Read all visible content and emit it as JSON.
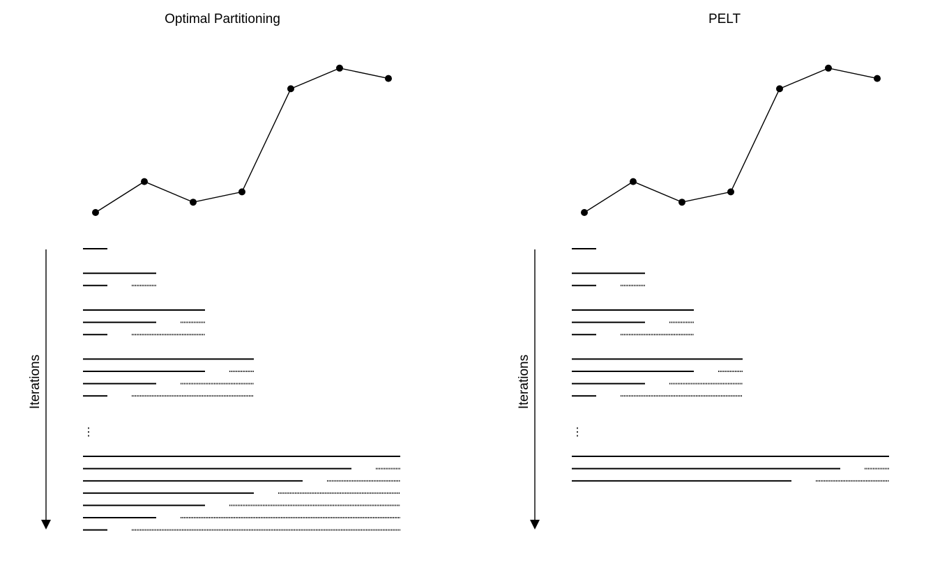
{
  "panels": [
    {
      "title": "Optimal Partitioning",
      "y_axis_label": "Iterations",
      "ellipsis": "⋮",
      "points": [
        3,
        6,
        4,
        5,
        15,
        17,
        16
      ],
      "groups_before_ellipsis": [
        [
          {
            "end": 1,
            "prune": null
          }
        ],
        [
          {
            "end": 3,
            "prune": null
          },
          {
            "end": 1,
            "prune": [
              2,
              3
            ]
          }
        ],
        [
          {
            "end": 5,
            "prune": null
          },
          {
            "end": 3,
            "prune": [
              4,
              5
            ]
          },
          {
            "end": 1,
            "prune": [
              2,
              5
            ]
          }
        ],
        [
          {
            "end": 7,
            "prune": null
          },
          {
            "end": 5,
            "prune": [
              6,
              7
            ]
          },
          {
            "end": 3,
            "prune": [
              4,
              7
            ]
          },
          {
            "end": 1,
            "prune": [
              2,
              7
            ]
          }
        ]
      ],
      "final_group": [
        {
          "end": 13,
          "prune": null
        },
        {
          "end": 11,
          "prune": [
            12,
            13
          ]
        },
        {
          "end": 9,
          "prune": [
            10,
            13
          ]
        },
        {
          "end": 7,
          "prune": [
            8,
            13
          ]
        },
        {
          "end": 5,
          "prune": [
            6,
            13
          ]
        },
        {
          "end": 3,
          "prune": [
            4,
            13
          ]
        },
        {
          "end": 1,
          "prune": [
            2,
            13
          ]
        }
      ]
    },
    {
      "title": "PELT",
      "y_axis_label": "Iterations",
      "ellipsis": "⋮",
      "points": [
        3,
        6,
        4,
        5,
        15,
        17,
        16
      ],
      "groups_before_ellipsis": [
        [
          {
            "end": 1,
            "prune": null
          }
        ],
        [
          {
            "end": 3,
            "prune": null
          },
          {
            "end": 1,
            "prune": [
              2,
              3
            ]
          }
        ],
        [
          {
            "end": 5,
            "prune": null
          },
          {
            "end": 3,
            "prune": [
              4,
              5
            ]
          },
          {
            "end": 1,
            "prune": [
              2,
              5
            ]
          }
        ],
        [
          {
            "end": 7,
            "prune": null
          },
          {
            "end": 5,
            "prune": [
              6,
              7
            ]
          },
          {
            "end": 3,
            "prune": [
              4,
              7
            ]
          },
          {
            "end": 1,
            "prune": [
              2,
              7
            ]
          }
        ]
      ],
      "final_group": [
        {
          "end": 13,
          "prune": null
        },
        {
          "end": 11,
          "prune": [
            12,
            13
          ]
        },
        {
          "end": 9,
          "prune": [
            10,
            13
          ]
        }
      ]
    }
  ]
}
